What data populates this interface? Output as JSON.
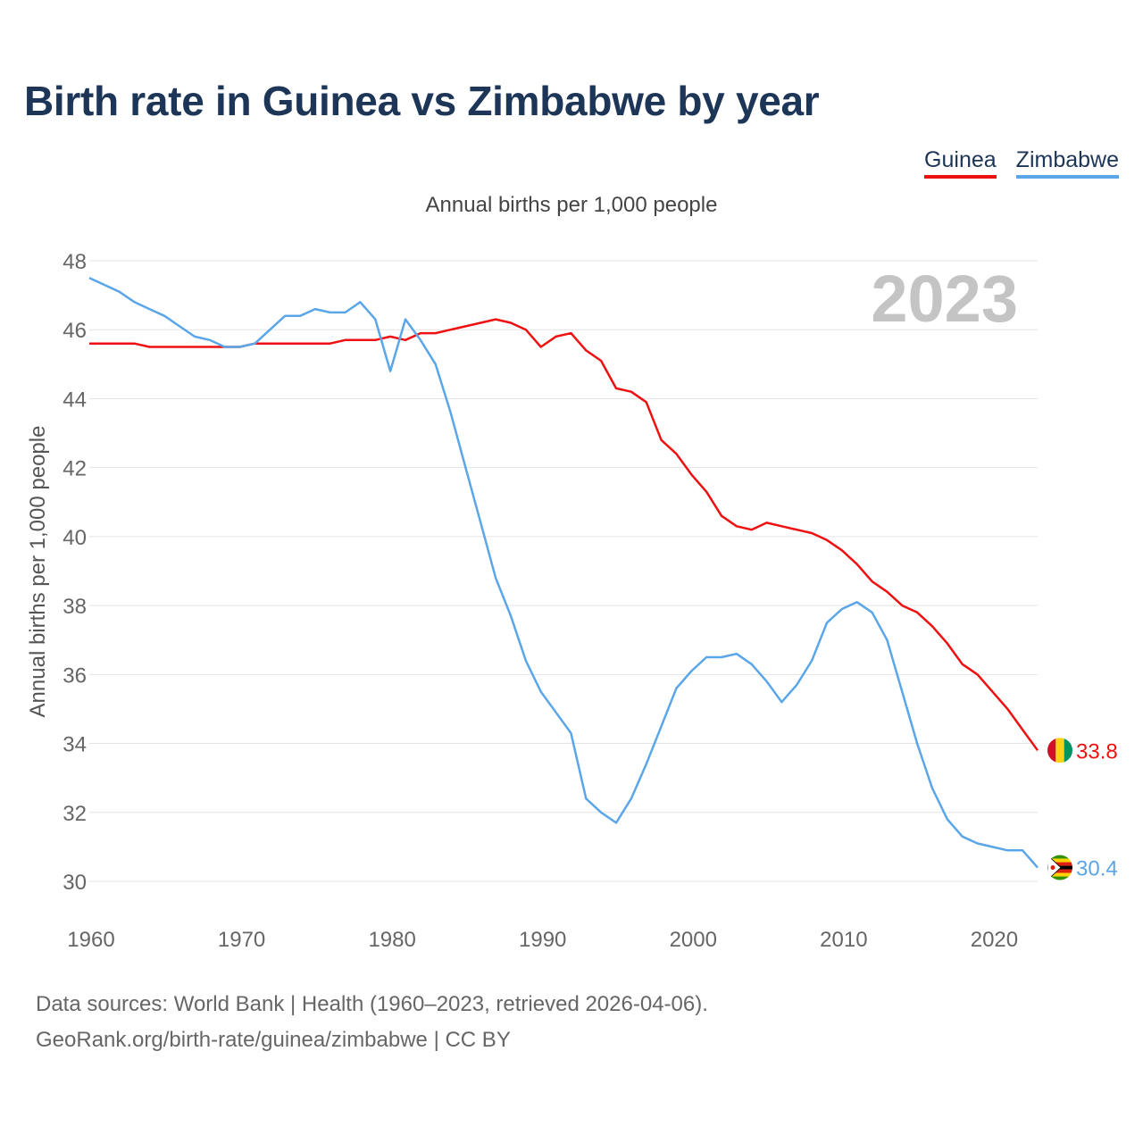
{
  "title": "Birth rate in Guinea vs Zimbabwe by year",
  "legend": [
    {
      "name": "Guinea",
      "color": "#ee1111"
    },
    {
      "name": "Zimbabwe",
      "color": "#5aa6e8"
    }
  ],
  "subtitle": "Annual births per 1,000 people",
  "year_label": "2023",
  "source": {
    "line1": "Data sources: World Bank | Health (1960–2023, retrieved 2026-04-06).",
    "line2": "GeoRank.org/birth-rate/guinea/zimbabwe | CC BY"
  },
  "chart_data": {
    "type": "line",
    "title": "Birth rate in Guinea vs Zimbabwe by year",
    "xlabel": "",
    "ylabel": "Annual births per 1,000 people",
    "xlim": [
      1960,
      2023
    ],
    "ylim": [
      30,
      48
    ],
    "grid": true,
    "x_ticks": [
      "1960",
      "1970",
      "1980",
      "1990",
      "2000",
      "2010",
      "2020"
    ],
    "y_ticks": [
      "30",
      "32",
      "34",
      "36",
      "38",
      "40",
      "42",
      "44",
      "46",
      "48"
    ],
    "x": [
      1960,
      1961,
      1962,
      1963,
      1964,
      1965,
      1966,
      1967,
      1968,
      1969,
      1970,
      1971,
      1972,
      1973,
      1974,
      1975,
      1976,
      1977,
      1978,
      1979,
      1980,
      1981,
      1982,
      1983,
      1984,
      1985,
      1986,
      1987,
      1988,
      1989,
      1990,
      1991,
      1992,
      1993,
      1994,
      1995,
      1996,
      1997,
      1998,
      1999,
      2000,
      2001,
      2002,
      2003,
      2004,
      2005,
      2006,
      2007,
      2008,
      2009,
      2010,
      2011,
      2012,
      2013,
      2014,
      2015,
      2016,
      2017,
      2018,
      2019,
      2020,
      2021,
      2022,
      2023
    ],
    "series": [
      {
        "name": "Guinea",
        "color": "#ee1111",
        "end_label": "33.8",
        "values": [
          45.6,
          45.6,
          45.6,
          45.6,
          45.5,
          45.5,
          45.5,
          45.5,
          45.5,
          45.5,
          45.5,
          45.6,
          45.6,
          45.6,
          45.6,
          45.6,
          45.6,
          45.7,
          45.7,
          45.7,
          45.8,
          45.7,
          45.9,
          45.9,
          46.0,
          46.1,
          46.2,
          46.3,
          46.2,
          46.0,
          45.5,
          45.8,
          45.9,
          45.4,
          45.1,
          44.3,
          44.2,
          43.9,
          42.8,
          42.4,
          41.8,
          41.3,
          40.6,
          40.3,
          40.2,
          40.4,
          40.3,
          40.2,
          40.1,
          39.9,
          39.6,
          39.2,
          38.7,
          38.4,
          38.0,
          37.8,
          37.4,
          36.9,
          36.3,
          36.0,
          35.5,
          35.0,
          34.4,
          33.8
        ]
      },
      {
        "name": "Zimbabwe",
        "color": "#5aa6e8",
        "end_label": "30.4",
        "values": [
          47.5,
          47.3,
          47.1,
          46.8,
          46.6,
          46.4,
          46.1,
          45.8,
          45.7,
          45.5,
          45.5,
          45.6,
          46.0,
          46.4,
          46.4,
          46.6,
          46.5,
          46.5,
          46.8,
          46.3,
          44.8,
          46.3,
          45.7,
          45.0,
          43.6,
          42.0,
          40.4,
          38.8,
          37.7,
          36.4,
          35.5,
          34.9,
          34.3,
          32.4,
          32.0,
          31.7,
          32.4,
          33.4,
          34.5,
          35.6,
          36.1,
          36.5,
          36.5,
          36.6,
          36.3,
          35.8,
          35.2,
          35.7,
          36.4,
          37.5,
          37.9,
          38.1,
          37.8,
          37.0,
          35.5,
          34.0,
          32.7,
          31.8,
          31.3,
          31.1,
          31.0,
          30.9,
          30.9,
          30.4
        ]
      }
    ]
  }
}
